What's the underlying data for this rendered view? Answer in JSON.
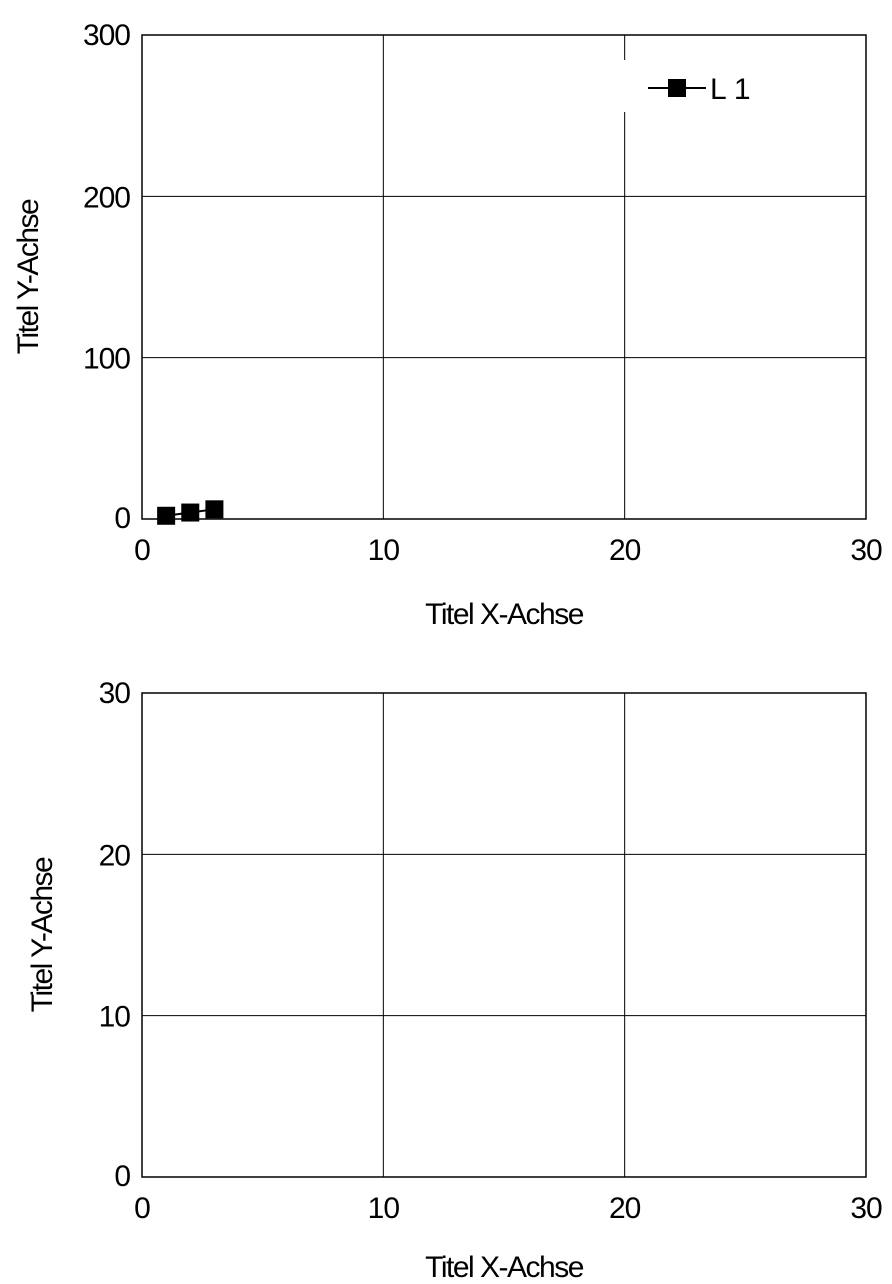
{
  "chart_data": [
    {
      "type": "line",
      "xlabel": "Titel X-Achse",
      "ylabel": "Titel Y-Achse",
      "xlim": [
        0,
        30
      ],
      "ylim": [
        0,
        300
      ],
      "xticks": [
        "0",
        "10",
        "20",
        "30"
      ],
      "yticks": [
        "0",
        "100",
        "200",
        "300"
      ],
      "grid": true,
      "legend_position": "top-right",
      "series": [
        {
          "name": "L 1",
          "marker": "square",
          "color": "#000000",
          "x": [
            1,
            2,
            3
          ],
          "y": [
            2,
            4,
            6
          ]
        }
      ]
    },
    {
      "type": "line",
      "xlabel": "Titel X-Achse",
      "ylabel": "Titel Y-Achse",
      "xlim": [
        0,
        30
      ],
      "ylim": [
        0,
        30
      ],
      "xticks": [
        "0",
        "10",
        "20",
        "30"
      ],
      "yticks": [
        "0",
        "10",
        "20",
        "30"
      ],
      "grid": true,
      "series": []
    }
  ]
}
